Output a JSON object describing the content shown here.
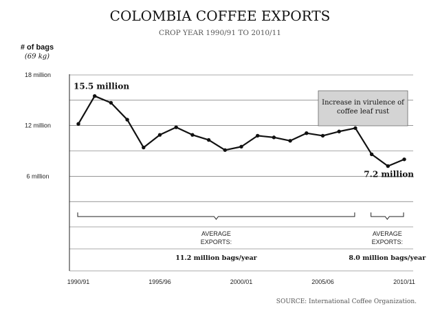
{
  "chart_data": {
    "type": "line",
    "title": "COLOMBIA COFFEE EXPORTS",
    "subtitle": "CROP YEAR 1990/91 TO 2010/11",
    "ylabel": "# of bags",
    "ylabel_unit": "(69 kg)",
    "ylim": [
      0,
      18000000
    ],
    "grid": true,
    "y_ticks": [
      {
        "value": 18000000,
        "label": "18 million"
      },
      {
        "value": 12000000,
        "label": "12 million"
      },
      {
        "value": 6000000,
        "label": "6 million"
      }
    ],
    "x_ticks": [
      "1990/91",
      "1995/96",
      "2000/01",
      "2005/06",
      "2010/11"
    ],
    "series": [
      {
        "x": [
          "1990/91",
          "1991/92",
          "1992/93",
          "1993/94",
          "1994/95",
          "1995/96",
          "1996/97",
          "1997/98",
          "1998/99",
          "1999/00",
          "2000/01",
          "2001/02",
          "2002/03",
          "2003/04",
          "2004/05",
          "2005/06",
          "2006/07",
          "2007/08",
          "2008/09",
          "2009/10",
          "2010/11"
        ],
        "values": [
          12200000,
          15500000,
          14700000,
          12700000,
          9400000,
          10900000,
          11800000,
          10900000,
          10300000,
          9100000,
          9500000,
          10800000,
          10600000,
          10200000,
          11100000,
          10800000,
          11300000,
          11700000,
          8600000,
          7200000,
          8000000
        ]
      }
    ],
    "annotations": {
      "max_label": "15.5 million",
      "min_label": "7.2 million",
      "callout": [
        "Increase in virulence of",
        "coffee leaf rust"
      ]
    },
    "averages": [
      {
        "from": 0,
        "to": 17,
        "label_lines": [
          "AVERAGE",
          "EXPORTS:"
        ],
        "value_label": "11.2 million bags/year"
      },
      {
        "from": 18,
        "to": 20,
        "label_lines": [
          "AVERAGE",
          "EXPORTS:"
        ],
        "value_label": "8.0 million bags/year"
      }
    ]
  },
  "source": "SOURCE: International Coffee Organization.",
  "colors": {
    "line": "#111111",
    "grid": "#555555",
    "callout_fill": "#d4d4d4",
    "muted_text": "#555555"
  }
}
